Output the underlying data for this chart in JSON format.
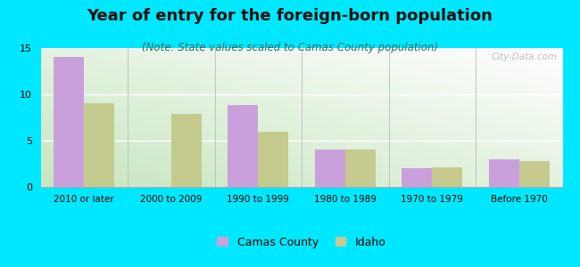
{
  "title": "Year of entry for the foreign-born population",
  "subtitle": "(Note: State values scaled to Camas County population)",
  "categories": [
    "2010 or later",
    "2000 to 2009",
    "1990 to 1999",
    "1980 to 1989",
    "1970 to 1979",
    "Before 1970"
  ],
  "camas_values": [
    14.0,
    0,
    8.8,
    4.0,
    2.0,
    3.0
  ],
  "idaho_values": [
    9.0,
    7.9,
    6.0,
    4.0,
    2.1,
    2.8
  ],
  "camas_color": "#c9a0dc",
  "idaho_color": "#c5ca8e",
  "background_outer": "#00e8ff",
  "background_inner_tl": "#ffffff",
  "background_inner_br": "#c8e6c0",
  "ylim": [
    0,
    15
  ],
  "yticks": [
    0,
    5,
    10,
    15
  ],
  "bar_width": 0.35,
  "title_fontsize": 13,
  "subtitle_fontsize": 8.5,
  "legend_labels": [
    "Camas County",
    "Idaho"
  ],
  "watermark": "City-Data.com"
}
